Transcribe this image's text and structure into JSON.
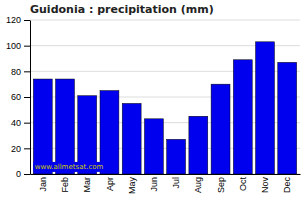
{
  "chart_data": {
    "type": "bar",
    "title": "Guidonia : precipitation (mm)",
    "categories": [
      "Jan",
      "Feb",
      "Mar",
      "Apr",
      "May",
      "Jun",
      "Jul",
      "Aug",
      "Sep",
      "Oct",
      "Nov",
      "Dec"
    ],
    "values": [
      74,
      74,
      61,
      65,
      55,
      43,
      27,
      45,
      70,
      89,
      103,
      87
    ],
    "color": "#0000EE",
    "ylim": [
      0,
      120
    ],
    "yticks": [
      0,
      20,
      40,
      60,
      80,
      100,
      120
    ],
    "grid": true,
    "annotations": [
      "www.allmetsat.com"
    ]
  }
}
